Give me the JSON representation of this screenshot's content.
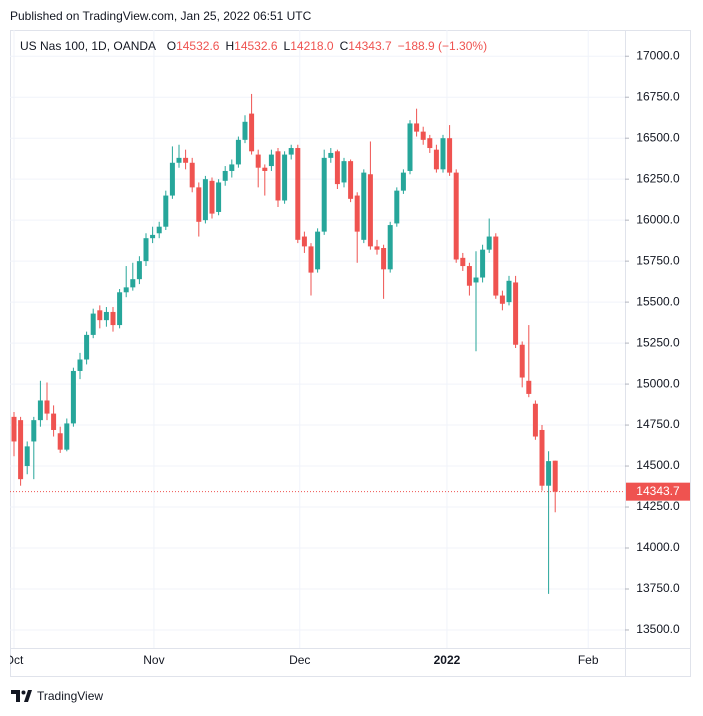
{
  "header": "Published on TradingView.com, Jan 25, 2022 06:51 UTC",
  "footer": "TradingView",
  "chart_data": {
    "type": "candlestick",
    "legend": {
      "symbol": "US Nas 100, 1D, OANDA",
      "items": [
        {
          "key": "O",
          "value": "14532.6"
        },
        {
          "key": "H",
          "value": "14532.6"
        },
        {
          "key": "L",
          "value": "14218.0"
        },
        {
          "key": "C",
          "value": "14343.7"
        }
      ],
      "change": "−188.9 (−1.30%)"
    },
    "last_price_label": "14343.7",
    "up_color": "#26a69a",
    "down_color": "#ef5350",
    "open": [
      14800,
      14780,
      14500,
      14650,
      14780,
      14900,
      14820,
      14700,
      14600,
      14760,
      15080,
      15150,
      15300,
      15450,
      15390,
      15440,
      15360,
      15560,
      15590,
      15640,
      15750,
      15890,
      15920,
      15960,
      16150,
      16350,
      16380,
      16350,
      16200,
      16000,
      16240,
      16050,
      16240,
      16300,
      16340,
      16490,
      16650,
      16400,
      16320,
      16330,
      16420,
      16120,
      16400,
      16440,
      15900,
      15840,
      15700,
      15930,
      16380,
      16420,
      16230,
      16360,
      16150,
      15880,
      16280,
      15840,
      15830,
      15700,
      15980,
      16180,
      16300,
      16590,
      16540,
      16500,
      16430,
      16310,
      16500,
      16290,
      15770,
      15720,
      15620,
      15650,
      15820,
      15900,
      15540,
      15500,
      15620,
      15240,
      15020,
      14880,
      14720,
      14380,
      14532.6
    ],
    "high": [
      14830,
      14800,
      14650,
      14800,
      15020,
      15010,
      14870,
      14740,
      14790,
      15100,
      15190,
      15320,
      15460,
      15480,
      15470,
      15470,
      15580,
      15720,
      15740,
      15780,
      15920,
      15960,
      15990,
      16180,
      16450,
      16460,
      16430,
      16380,
      16230,
      16270,
      16260,
      16250,
      16330,
      16370,
      16510,
      16640,
      16770,
      16430,
      16340,
      16430,
      16440,
      16420,
      16460,
      16460,
      15930,
      15860,
      15950,
      16430,
      16440,
      16430,
      16380,
      16370,
      16170,
      16310,
      16480,
      15880,
      15850,
      15990,
      16200,
      16310,
      16610,
      16680,
      16570,
      16520,
      16460,
      16520,
      16580,
      16310,
      15800,
      15740,
      15810,
      15850,
      16010,
      15920,
      15570,
      15660,
      15660,
      15260,
      15360,
      14900,
      14750,
      14590,
      14532.6
    ],
    "low": [
      14560,
      14380,
      14450,
      14420,
      14740,
      14780,
      14680,
      14580,
      14590,
      14740,
      15030,
      15120,
      15280,
      15340,
      15350,
      15320,
      15340,
      15530,
      15570,
      15610,
      15720,
      15860,
      15890,
      15940,
      16130,
      16320,
      16310,
      16170,
      15900,
      15980,
      16010,
      16030,
      16210,
      16260,
      16320,
      16470,
      16400,
      16200,
      16150,
      16300,
      16080,
      16100,
      16370,
      15860,
      15800,
      15540,
      15680,
      15910,
      16350,
      16190,
      16200,
      16110,
      15740,
      15860,
      15820,
      15790,
      15520,
      15680,
      15960,
      16160,
      16280,
      16510,
      16460,
      16410,
      16290,
      16290,
      16270,
      15740,
      15690,
      15540,
      15200,
      15620,
      15800,
      15520,
      15450,
      15480,
      15220,
      14980,
      14920,
      14660,
      14350,
      13720,
      14218.0
    ],
    "close": [
      14650,
      14420,
      14620,
      14780,
      14900,
      14820,
      14720,
      14600,
      14760,
      15080,
      15150,
      15300,
      15430,
      15390,
      15440,
      15360,
      15560,
      15590,
      15640,
      15750,
      15890,
      15910,
      15960,
      16150,
      16350,
      16380,
      16350,
      16200,
      15990,
      16250,
      16040,
      16230,
      16300,
      16340,
      16490,
      16600,
      16420,
      16320,
      16300,
      16400,
      16120,
      16400,
      16440,
      15880,
      15840,
      15680,
      15930,
      16380,
      16410,
      16220,
      16360,
      16130,
      15930,
      16290,
      15840,
      15820,
      15700,
      15970,
      16180,
      16290,
      16590,
      16540,
      16490,
      16440,
      16310,
      16500,
      16290,
      15760,
      15720,
      15600,
      15650,
      15820,
      15900,
      15540,
      15490,
      15630,
      15240,
      15040,
      14940,
      14680,
      14380,
      14530,
      14343.7
    ],
    "ylim": [
      13390,
      17160
    ],
    "yticks": [
      {
        "value": 13500,
        "label": "13500.0"
      },
      {
        "value": 13750,
        "label": "13750.0"
      },
      {
        "value": 14000,
        "label": "14000.0"
      },
      {
        "value": 14250,
        "label": "14250.0"
      },
      {
        "value": 14500,
        "label": "14500.0"
      },
      {
        "value": 14750,
        "label": "14750.0"
      },
      {
        "value": 15000,
        "label": "15000.0"
      },
      {
        "value": 15250,
        "label": "15250.0"
      },
      {
        "value": 15500,
        "label": "15500.0"
      },
      {
        "value": 15750,
        "label": "15750.0"
      },
      {
        "value": 16000,
        "label": "16000.0"
      },
      {
        "value": 16250,
        "label": "16250.0"
      },
      {
        "value": 16500,
        "label": "16500.0"
      },
      {
        "value": 16750,
        "label": "16750.0"
      },
      {
        "value": 17000,
        "label": "17000.0"
      }
    ],
    "xticks": [
      {
        "value": 0,
        "label": "Oct"
      },
      {
        "value": 21.2,
        "label": "Nov"
      },
      {
        "value": 43.3,
        "label": "Dec"
      },
      {
        "value": 65.6,
        "label": "2022"
      },
      {
        "value": 87,
        "label": "Feb"
      }
    ],
    "grid": true
  }
}
